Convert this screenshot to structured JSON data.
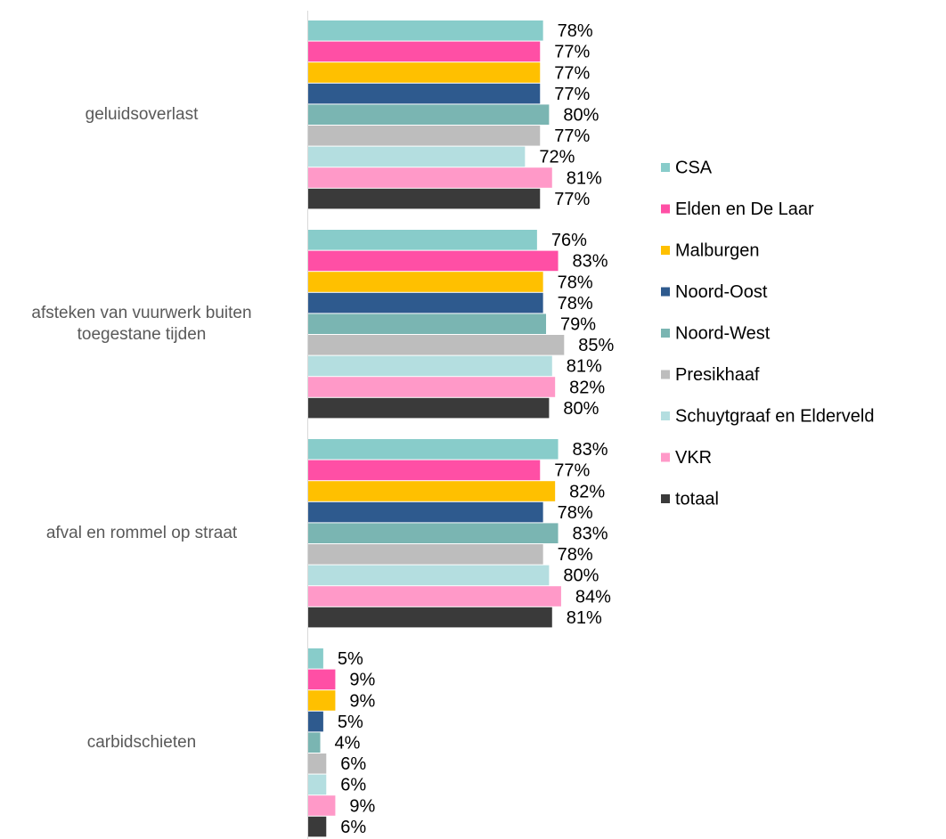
{
  "chart_data": {
    "type": "bar",
    "orientation": "horizontal",
    "categories": [
      "geluidsoverlast",
      "afsteken van vuurwerk buiten toegestane tijden",
      "afval en rommel op straat",
      "carbidschieten"
    ],
    "xlim": [
      0,
      100
    ],
    "series": [
      {
        "name": "CSA",
        "color": "#88CCCA",
        "values": [
          78,
          76,
          83,
          5
        ],
        "value_labels": [
          "78%",
          "76%",
          "83%",
          "5%"
        ]
      },
      {
        "name": "Elden en De Laar",
        "color": "#FF4FA5",
        "values": [
          77,
          83,
          77,
          9
        ],
        "value_labels": [
          "77%",
          "83%",
          "77%",
          "9%"
        ]
      },
      {
        "name": "Malburgen",
        "color": "#FFC000",
        "values": [
          77,
          78,
          82,
          9
        ],
        "value_labels": [
          "77%",
          "78%",
          "82%",
          "9%"
        ]
      },
      {
        "name": "Noord-Oost",
        "color": "#2E5A8E",
        "values": [
          77,
          78,
          78,
          5
        ],
        "value_labels": [
          "77%",
          "78%",
          "78%",
          "5%"
        ]
      },
      {
        "name": "Noord-West",
        "color": "#7AB5B2",
        "values": [
          80,
          79,
          83,
          4
        ],
        "value_labels": [
          "80%",
          "79%",
          "83%",
          "4%"
        ]
      },
      {
        "name": "Presikhaaf",
        "color": "#BDBDBD",
        "values": [
          77,
          85,
          78,
          6
        ],
        "value_labels": [
          "77%",
          "85%",
          "78%",
          "6%"
        ]
      },
      {
        "name": "Schuytgraaf en Elderveld",
        "color": "#B4DEE0",
        "values": [
          72,
          81,
          80,
          6
        ],
        "value_labels": [
          "72%",
          "81%",
          "80%",
          "6%"
        ]
      },
      {
        "name": "VKR",
        "color": "#FF99C8",
        "values": [
          81,
          82,
          84,
          9
        ],
        "value_labels": [
          "81%",
          "82%",
          "84%",
          "9%"
        ]
      },
      {
        "name": "totaal",
        "color": "#3A3A3A",
        "values": [
          77,
          80,
          81,
          6
        ],
        "value_labels": [
          "77%",
          "80%",
          "81%",
          "6%"
        ]
      }
    ]
  }
}
